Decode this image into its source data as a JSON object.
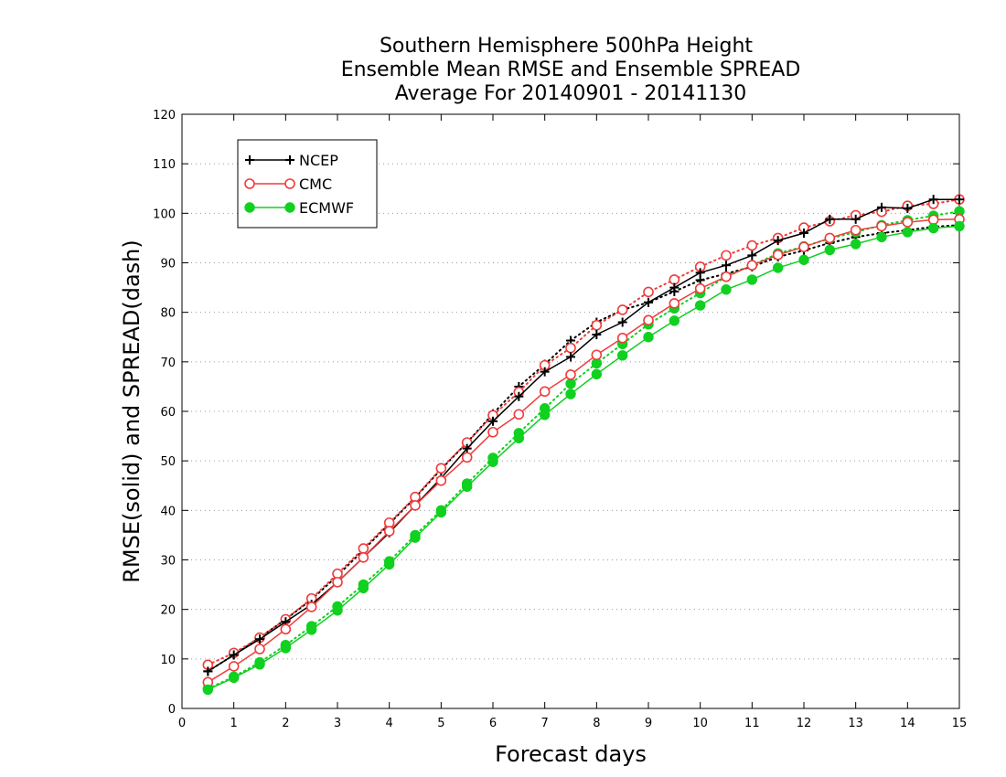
{
  "chart_data": {
    "type": "line",
    "title": [
      "Southern Hemisphere 500hPa Height",
      "Ensemble Mean RMSE and Ensemble SPREAD",
      "Average For 20140901 - 20141130"
    ],
    "xlabel": "Forecast days",
    "ylabel": "RMSE(solid) and SPREAD(dash)",
    "xlim": [
      0,
      15
    ],
    "ylim": [
      0,
      120
    ],
    "xticks": [
      "0",
      "1",
      "2",
      "3",
      "4",
      "5",
      "6",
      "7",
      "8",
      "9",
      "10",
      "11",
      "12",
      "13",
      "14",
      "15"
    ],
    "yticks": [
      "0",
      "10",
      "20",
      "30",
      "40",
      "50",
      "60",
      "70",
      "80",
      "90",
      "100",
      "110",
      "120"
    ],
    "grid": true,
    "legend_position": "top-left",
    "x": [
      0.5,
      1,
      1.5,
      2,
      2.5,
      3,
      3.5,
      4,
      4.5,
      5,
      5.5,
      6,
      6.5,
      7,
      7.5,
      8,
      8.5,
      9,
      9.5,
      10,
      10.5,
      11,
      11.5,
      12,
      12.5,
      13,
      13.5,
      14,
      14.5,
      15
    ],
    "series": [
      {
        "name": "NCEP",
        "style": "solid",
        "color": "#000000",
        "marker": "plus",
        "values": [
          7.5,
          10.8,
          14,
          17.5,
          21,
          25.5,
          30.5,
          35.5,
          41,
          46.5,
          52.5,
          58,
          63,
          68,
          71,
          75.5,
          78,
          82,
          85,
          88,
          89.5,
          91.5,
          94.5,
          96,
          98.8,
          98.8,
          101.2,
          101,
          102.8,
          102.8
        ]
      },
      {
        "name": "NCEP",
        "style": "dash",
        "color": "#000000",
        "marker": "plus",
        "values": [
          7.5,
          10.8,
          14.3,
          18,
          22,
          26.8,
          32,
          37.3,
          42.6,
          48.3,
          53.7,
          59.5,
          65,
          69.5,
          74.3,
          78,
          80.5,
          82,
          84.2,
          86.5,
          87.8,
          89.2,
          91.2,
          92.5,
          94,
          95.2,
          96,
          96.6,
          97.3,
          97.6
        ]
      },
      {
        "name": "CMC",
        "style": "solid",
        "color": "#ef3b3b",
        "marker": "open-circle",
        "values": [
          5.3,
          8.5,
          12,
          16,
          20.5,
          25.5,
          30.5,
          35.8,
          41,
          46,
          50.7,
          55.8,
          59.4,
          64,
          67.4,
          71.4,
          74.8,
          78.4,
          81.8,
          84.8,
          87.2,
          89.5,
          91.6,
          93.2,
          95,
          96.6,
          97.4,
          98.2,
          98.7,
          98.8
        ]
      },
      {
        "name": "CMC",
        "style": "dash",
        "color": "#ef3b3b",
        "marker": "open-circle",
        "values": [
          8.8,
          11.2,
          14.3,
          18,
          22.2,
          27.2,
          32.3,
          37.5,
          42.7,
          48.5,
          53.7,
          59.2,
          63.9,
          69.3,
          72.8,
          77.4,
          80.5,
          84.1,
          86.6,
          89.2,
          91.5,
          93.5,
          95,
          97.1,
          98.4,
          99.6,
          100.3,
          101.5,
          101.9,
          102.8
        ]
      },
      {
        "name": "ECMWF",
        "style": "solid",
        "color": "#10d020",
        "marker": "filled-circle",
        "values": [
          3.8,
          6.2,
          8.9,
          12.2,
          15.9,
          19.8,
          24.3,
          29.1,
          34.5,
          39.6,
          44.8,
          49.8,
          54.6,
          59.3,
          63.5,
          67.5,
          71.3,
          75,
          78.3,
          81.4,
          84.6,
          86.6,
          89,
          90.6,
          92.6,
          93.8,
          95.2,
          96.2,
          97,
          97.4
        ]
      },
      {
        "name": "ECMWF",
        "style": "dash",
        "color": "#10d020",
        "marker": "filled-circle",
        "values": [
          4,
          6.4,
          9.3,
          12.8,
          16.6,
          20.6,
          25,
          29.7,
          35,
          40,
          45.4,
          50.6,
          55.6,
          60.6,
          65.6,
          69.7,
          73.6,
          77.6,
          80.8,
          83.9,
          87.2,
          89.5,
          91.9,
          93.3,
          94.9,
          96.2,
          97.6,
          98.6,
          99.5,
          100.4
        ]
      }
    ]
  }
}
